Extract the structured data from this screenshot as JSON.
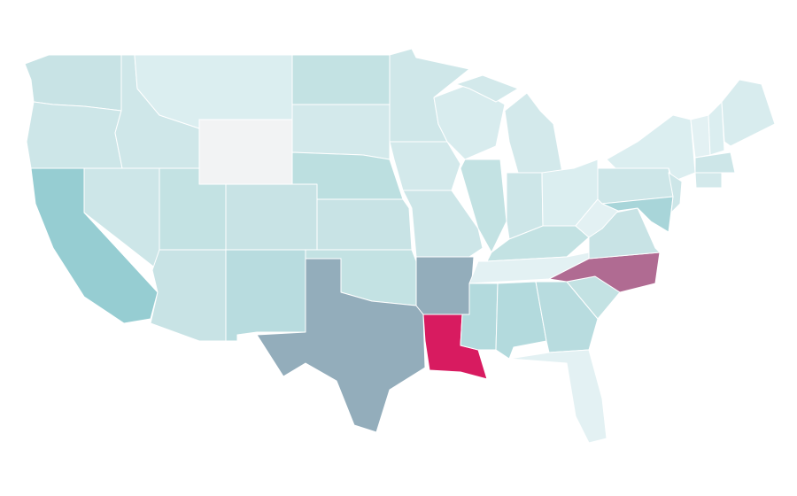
{
  "map": {
    "regions": [
      {
        "color": "#c8e3e5"
      },
      {
        "color": "#cde6e8"
      },
      {
        "color": "#96cdd2"
      },
      {
        "color": "#cde6e8"
      },
      {
        "color": "#cfe7e9"
      },
      {
        "color": "#dbeef0"
      },
      {
        "color": "#f2f3f4"
      },
      {
        "color": "#c3e2e3"
      },
      {
        "color": "#c8e3e5"
      },
      {
        "color": "#c8e3e5"
      },
      {
        "color": "#b8dcdf"
      },
      {
        "color": "#c3e2e3"
      },
      {
        "color": "#d3e9eb"
      },
      {
        "color": "#bcdfe0"
      },
      {
        "color": "#c8e3e5"
      },
      {
        "color": "#c3e2e3"
      },
      {
        "color": "#93adbb"
      },
      {
        "color": "#cfe7e9"
      },
      {
        "color": "#d3e9eb"
      },
      {
        "color": "#cde6e8"
      },
      {
        "color": "#93adbb"
      },
      {
        "color": "#d81b60"
      },
      {
        "color": "#d8ecee"
      },
      {
        "color": "#c3e2e3"
      },
      {
        "color": "#d3e9eb"
      },
      {
        "color": "#d3e9eb"
      },
      {
        "color": "#cde6e8"
      },
      {
        "color": "#dbeef0"
      },
      {
        "color": "#c3e2e3"
      },
      {
        "color": "#e3f1f3"
      },
      {
        "color": "#b3dadd"
      },
      {
        "color": "#b3dadd"
      },
      {
        "color": "#b8dcdf"
      },
      {
        "color": "#e3f1f3"
      },
      {
        "color": "#c3e2e3"
      },
      {
        "color": "#b06b92"
      },
      {
        "color": "#c8e3e5"
      },
      {
        "color": "#e3f1f3"
      },
      {
        "color": "#cde6e8"
      },
      {
        "color": "#dbeef0"
      },
      {
        "color": "#a8d5d9"
      },
      {
        "color": "#cde6e8"
      },
      {
        "color": "#e3f1f3"
      },
      {
        "color": "#dbeef0"
      },
      {
        "color": "#d8ecee"
      },
      {
        "color": "#cde6e8"
      },
      {
        "color": "#d3e9eb"
      }
    ]
  }
}
